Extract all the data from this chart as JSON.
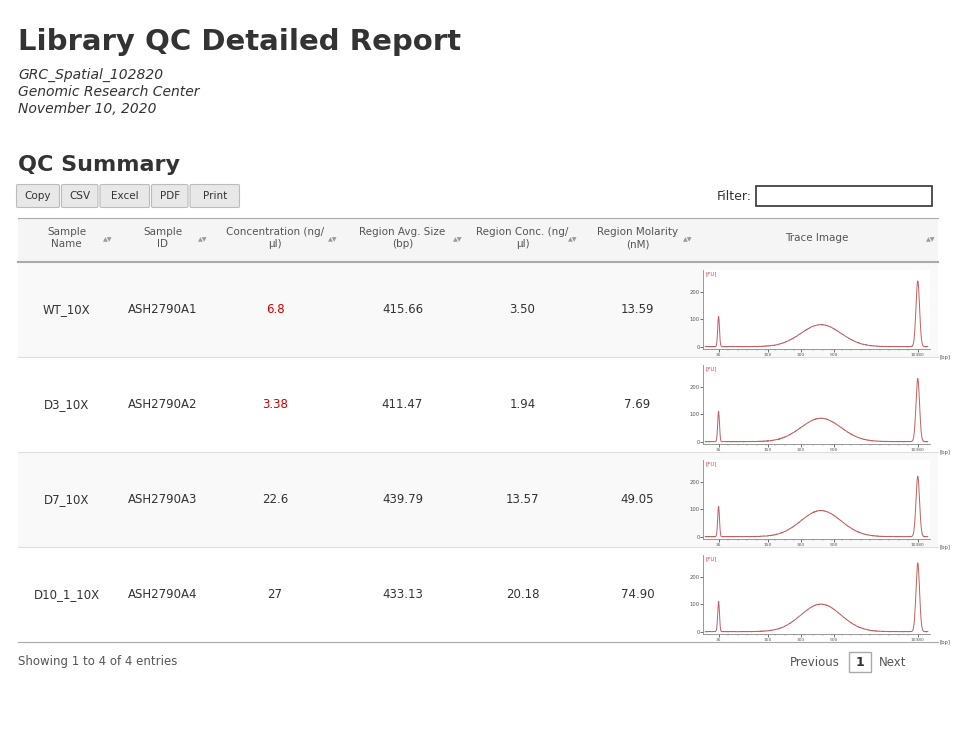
{
  "title": "Library QC Detailed Report",
  "subtitle1": "GRC_Spatial_102820",
  "subtitle2": "Genomic Research Center",
  "subtitle3": "November 10, 2020",
  "section_title": "QC Summary",
  "buttons": [
    "Copy",
    "CSV",
    "Excel",
    "PDF",
    "Print"
  ],
  "filter_label": "Filter:",
  "col_headers": [
    "Sample\nName",
    "Sample\nID",
    "Concentration (ng/\nµl)",
    "Region Avg. Size\n(bp)",
    "Region Conc. (ng/\nµl)",
    "Region Molarity\n(nM)",
    "Trace Image"
  ],
  "rows": [
    {
      "sample_name": "WT_10X",
      "sample_id": "ASH2790A1",
      "conc": "6.8",
      "conc_red": true,
      "avg_size": "415.66",
      "region_conc": "3.50",
      "molarity": "13.59"
    },
    {
      "sample_name": "D3_10X",
      "sample_id": "ASH2790A2",
      "conc": "3.38",
      "conc_red": true,
      "avg_size": "411.47",
      "region_conc": "1.94",
      "molarity": "7.69"
    },
    {
      "sample_name": "D7_10X",
      "sample_id": "ASH2790A3",
      "conc": "22.6",
      "conc_red": false,
      "avg_size": "439.79",
      "region_conc": "13.57",
      "molarity": "49.05"
    },
    {
      "sample_name": "D10_1_10X",
      "sample_id": "ASH2790A4",
      "conc": "27",
      "conc_red": false,
      "avg_size": "433.13",
      "region_conc": "20.18",
      "molarity": "74.90"
    }
  ],
  "footer": "Showing 1 to 4 of 4 entries",
  "page_num": "1",
  "bg_color": "#ffffff",
  "header_bg": "#f5f5f5",
  "row_even_bg": "#f9f9f9",
  "row_odd_bg": "#ffffff",
  "border_dark": "#aaaaaa",
  "border_light": "#dddddd",
  "text_color": "#333333",
  "text_light": "#555555",
  "red_color": "#cc0000",
  "button_bg": "#e8e8e8",
  "sort_color": "#999999",
  "trace_peak_color": "#c06060",
  "trace_axis_color": "#888888",
  "trace_label_color": "#cc4444"
}
